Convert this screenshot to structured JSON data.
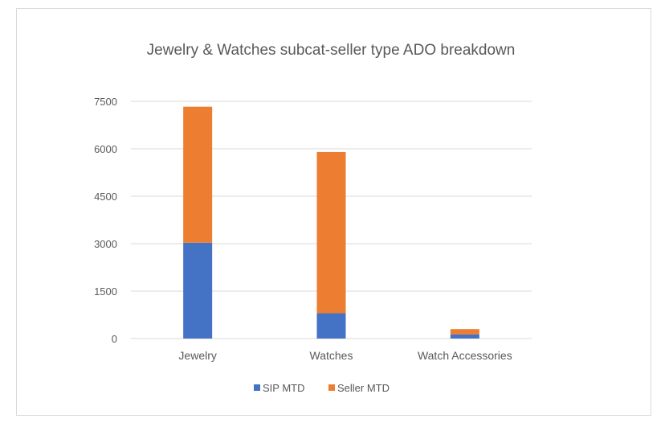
{
  "colors": {
    "sip": "#4472c4",
    "seller": "#ed7d31",
    "grid": "#d9d9d9",
    "text": "#595959",
    "border": "#d9d9d9"
  },
  "chart_data": {
    "type": "bar",
    "stacked": true,
    "title": "Jewelry & Watches subcat-seller type ADO breakdown",
    "categories": [
      "Jewelry",
      "Watches",
      "Watch Accessories"
    ],
    "series": [
      {
        "name": "SIP MTD",
        "color": "#4472c4",
        "values": [
          3030,
          800,
          130
        ]
      },
      {
        "name": "Seller MTD",
        "color": "#ed7d31",
        "values": [
          4300,
          5100,
          170
        ]
      }
    ],
    "y_ticks": [
      0,
      1500,
      3000,
      4500,
      6000,
      7500
    ],
    "ylim": [
      0,
      7500
    ],
    "grid": true,
    "legend_position": "bottom"
  }
}
